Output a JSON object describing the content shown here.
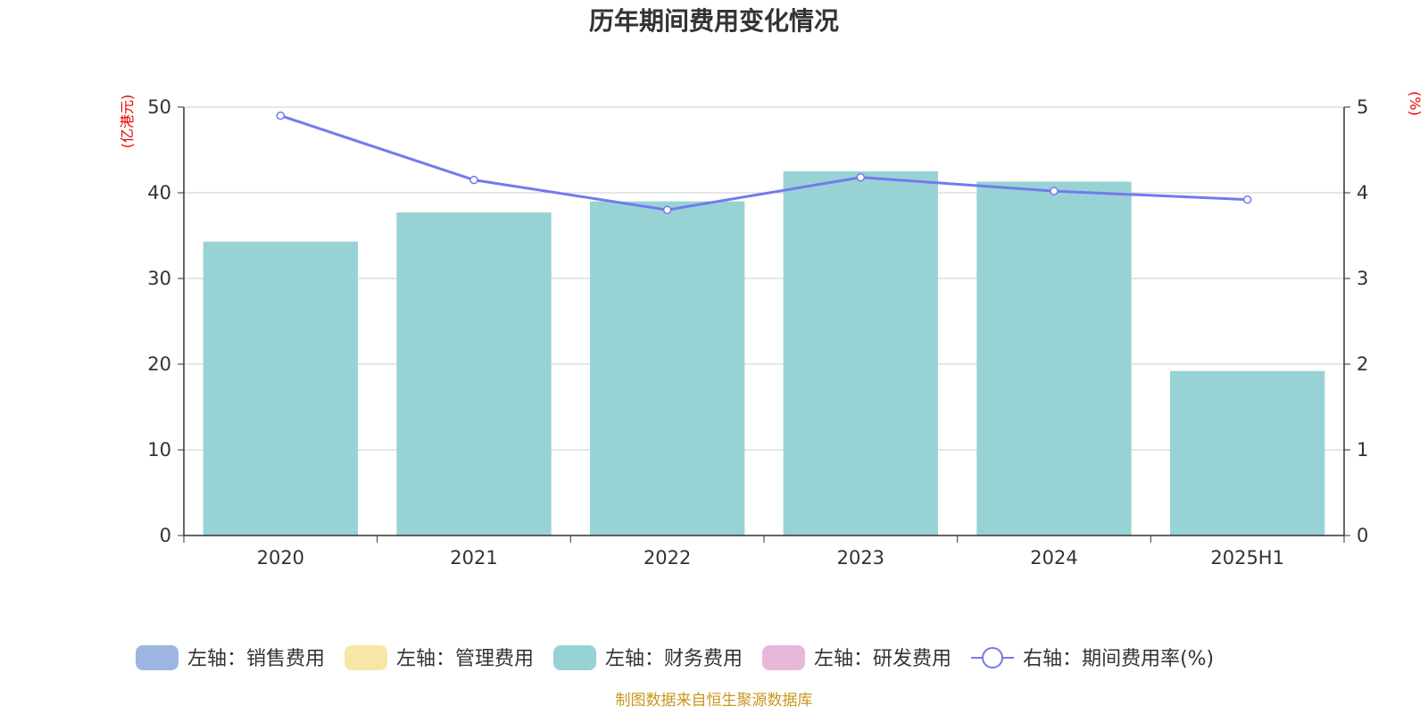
{
  "chart_data": {
    "type": "bar",
    "title": "历年期间费用变化情况",
    "categories": [
      "2020",
      "2021",
      "2022",
      "2023",
      "2024",
      "2025H1"
    ],
    "left_axis": {
      "unit": "(亿港元)",
      "ylim": [
        0,
        50
      ],
      "ticks": [
        "0",
        "10",
        "20",
        "30",
        "40",
        "50"
      ]
    },
    "right_axis": {
      "unit": "(%)",
      "ylim": [
        0,
        5
      ],
      "ticks": [
        "0",
        "1",
        "2",
        "3",
        "4",
        "5"
      ]
    },
    "series": [
      {
        "name": "左轴：销售费用",
        "type": "bar",
        "axis": "left",
        "color": "#9db6e1",
        "values": [
          0,
          0,
          0,
          0,
          0,
          0
        ]
      },
      {
        "name": "左轴：管理费用",
        "type": "bar",
        "axis": "left",
        "color": "#f7e7a6",
        "values": [
          0,
          0,
          0,
          0,
          0,
          0
        ]
      },
      {
        "name": "左轴：财务费用",
        "type": "bar",
        "axis": "left",
        "color": "#97d3d5",
        "values": [
          34.3,
          37.7,
          39.0,
          42.5,
          41.3,
          19.2
        ]
      },
      {
        "name": "左轴：研发费用",
        "type": "bar",
        "axis": "left",
        "color": "#e8b8da",
        "values": [
          0,
          0,
          0,
          0,
          0,
          0
        ]
      },
      {
        "name": "右轴：期间费用率(%)",
        "type": "line",
        "axis": "right",
        "color": "#7479ee",
        "values": [
          4.9,
          4.15,
          3.8,
          4.18,
          4.02,
          3.92
        ]
      }
    ],
    "grid": true,
    "legend_position": "bottom"
  },
  "footer": {
    "source": "制图数据来自恒生聚源数据库"
  }
}
